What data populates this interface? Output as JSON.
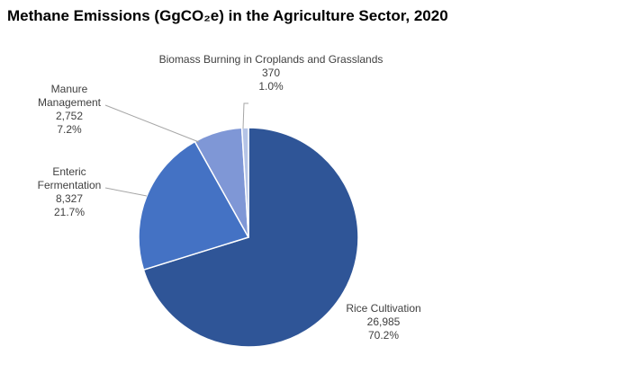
{
  "chart_data": {
    "type": "pie",
    "title": "Methane Emissions (GgCO₂e) in the Agriculture Sector, 2020",
    "slices": [
      {
        "name": "Rice Cultivation",
        "label_lines": [
          "Rice Cultivation"
        ],
        "value": 26985,
        "value_label": "26,985",
        "percent_label": "70.2%",
        "color": "#2F5597"
      },
      {
        "name": "Enteric Fermentation",
        "label_lines": [
          "Enteric",
          "Fermentation"
        ],
        "value": 8327,
        "value_label": "8,327",
        "percent_label": "21.7%",
        "color": "#4472C4"
      },
      {
        "name": "Manure Management",
        "label_lines": [
          "Manure",
          "Management"
        ],
        "value": 2752,
        "value_label": "2,752",
        "percent_label": "7.2%",
        "color": "#7F97D6"
      },
      {
        "name": "Biomass Burning in Croplands and Grasslands",
        "label_lines": [
          "Biomass Burning in Croplands and Grasslands"
        ],
        "value": 370,
        "value_label": "370",
        "percent_label": "1.0%",
        "color": "#B4C3E6"
      }
    ]
  }
}
